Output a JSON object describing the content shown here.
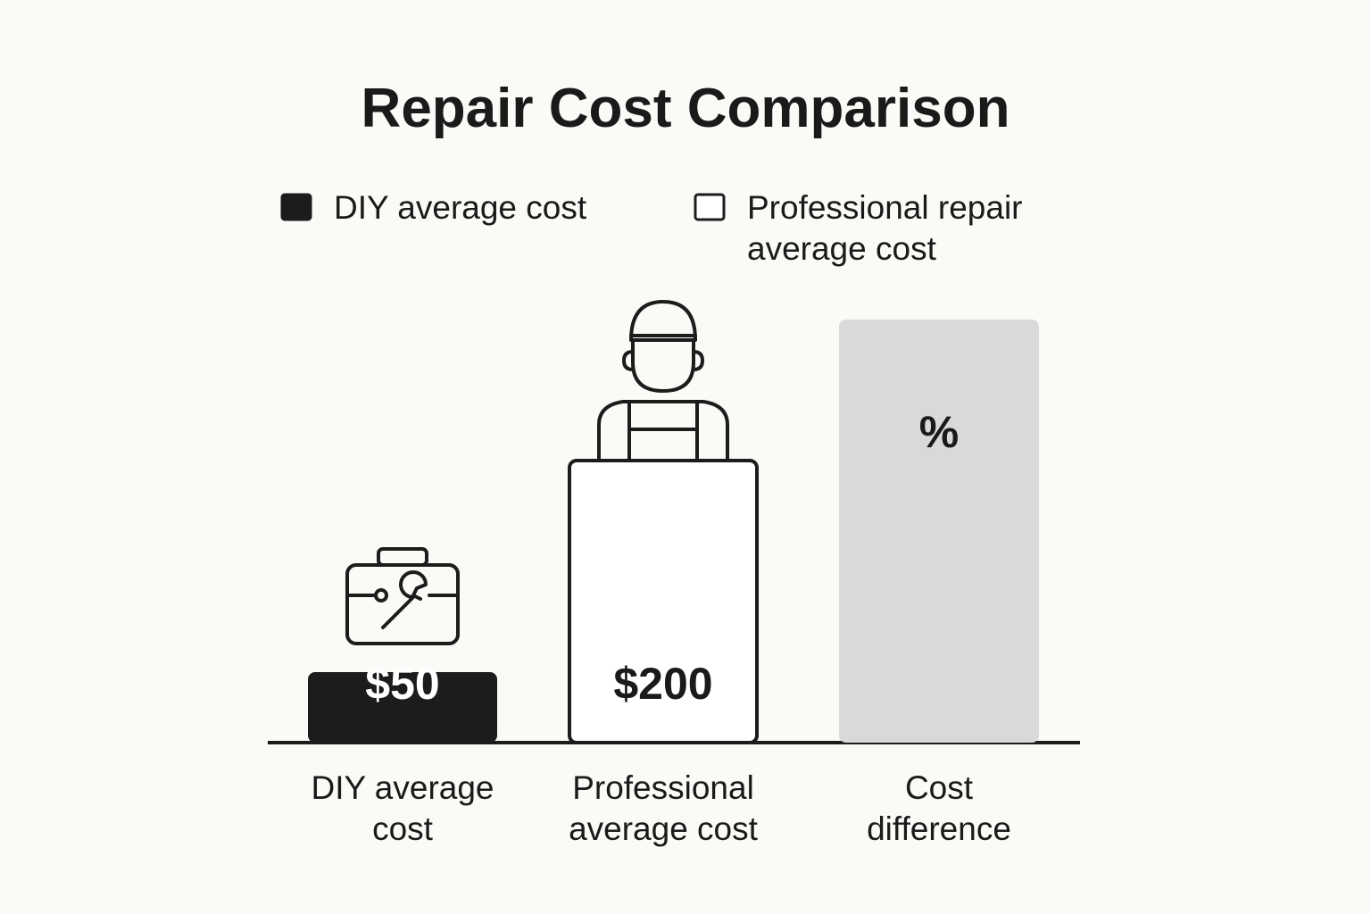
{
  "chart_data": {
    "type": "bar",
    "title": "Repair Cost Comparison",
    "legend": [
      {
        "label": "DIY average cost",
        "color": "#1c1c1c"
      },
      {
        "label": "Professional repair\naverage cost",
        "color": "#ffffff"
      }
    ],
    "categories": [
      "DIY average\ncost",
      "Professional\naverage cost",
      "Cost\ndifference"
    ],
    "values": [
      50,
      200,
      300
    ],
    "value_labels": [
      "$50",
      "$200",
      "%"
    ],
    "colors": [
      "#1c1c1c",
      "#ffffff",
      "#d9d9d9"
    ]
  }
}
